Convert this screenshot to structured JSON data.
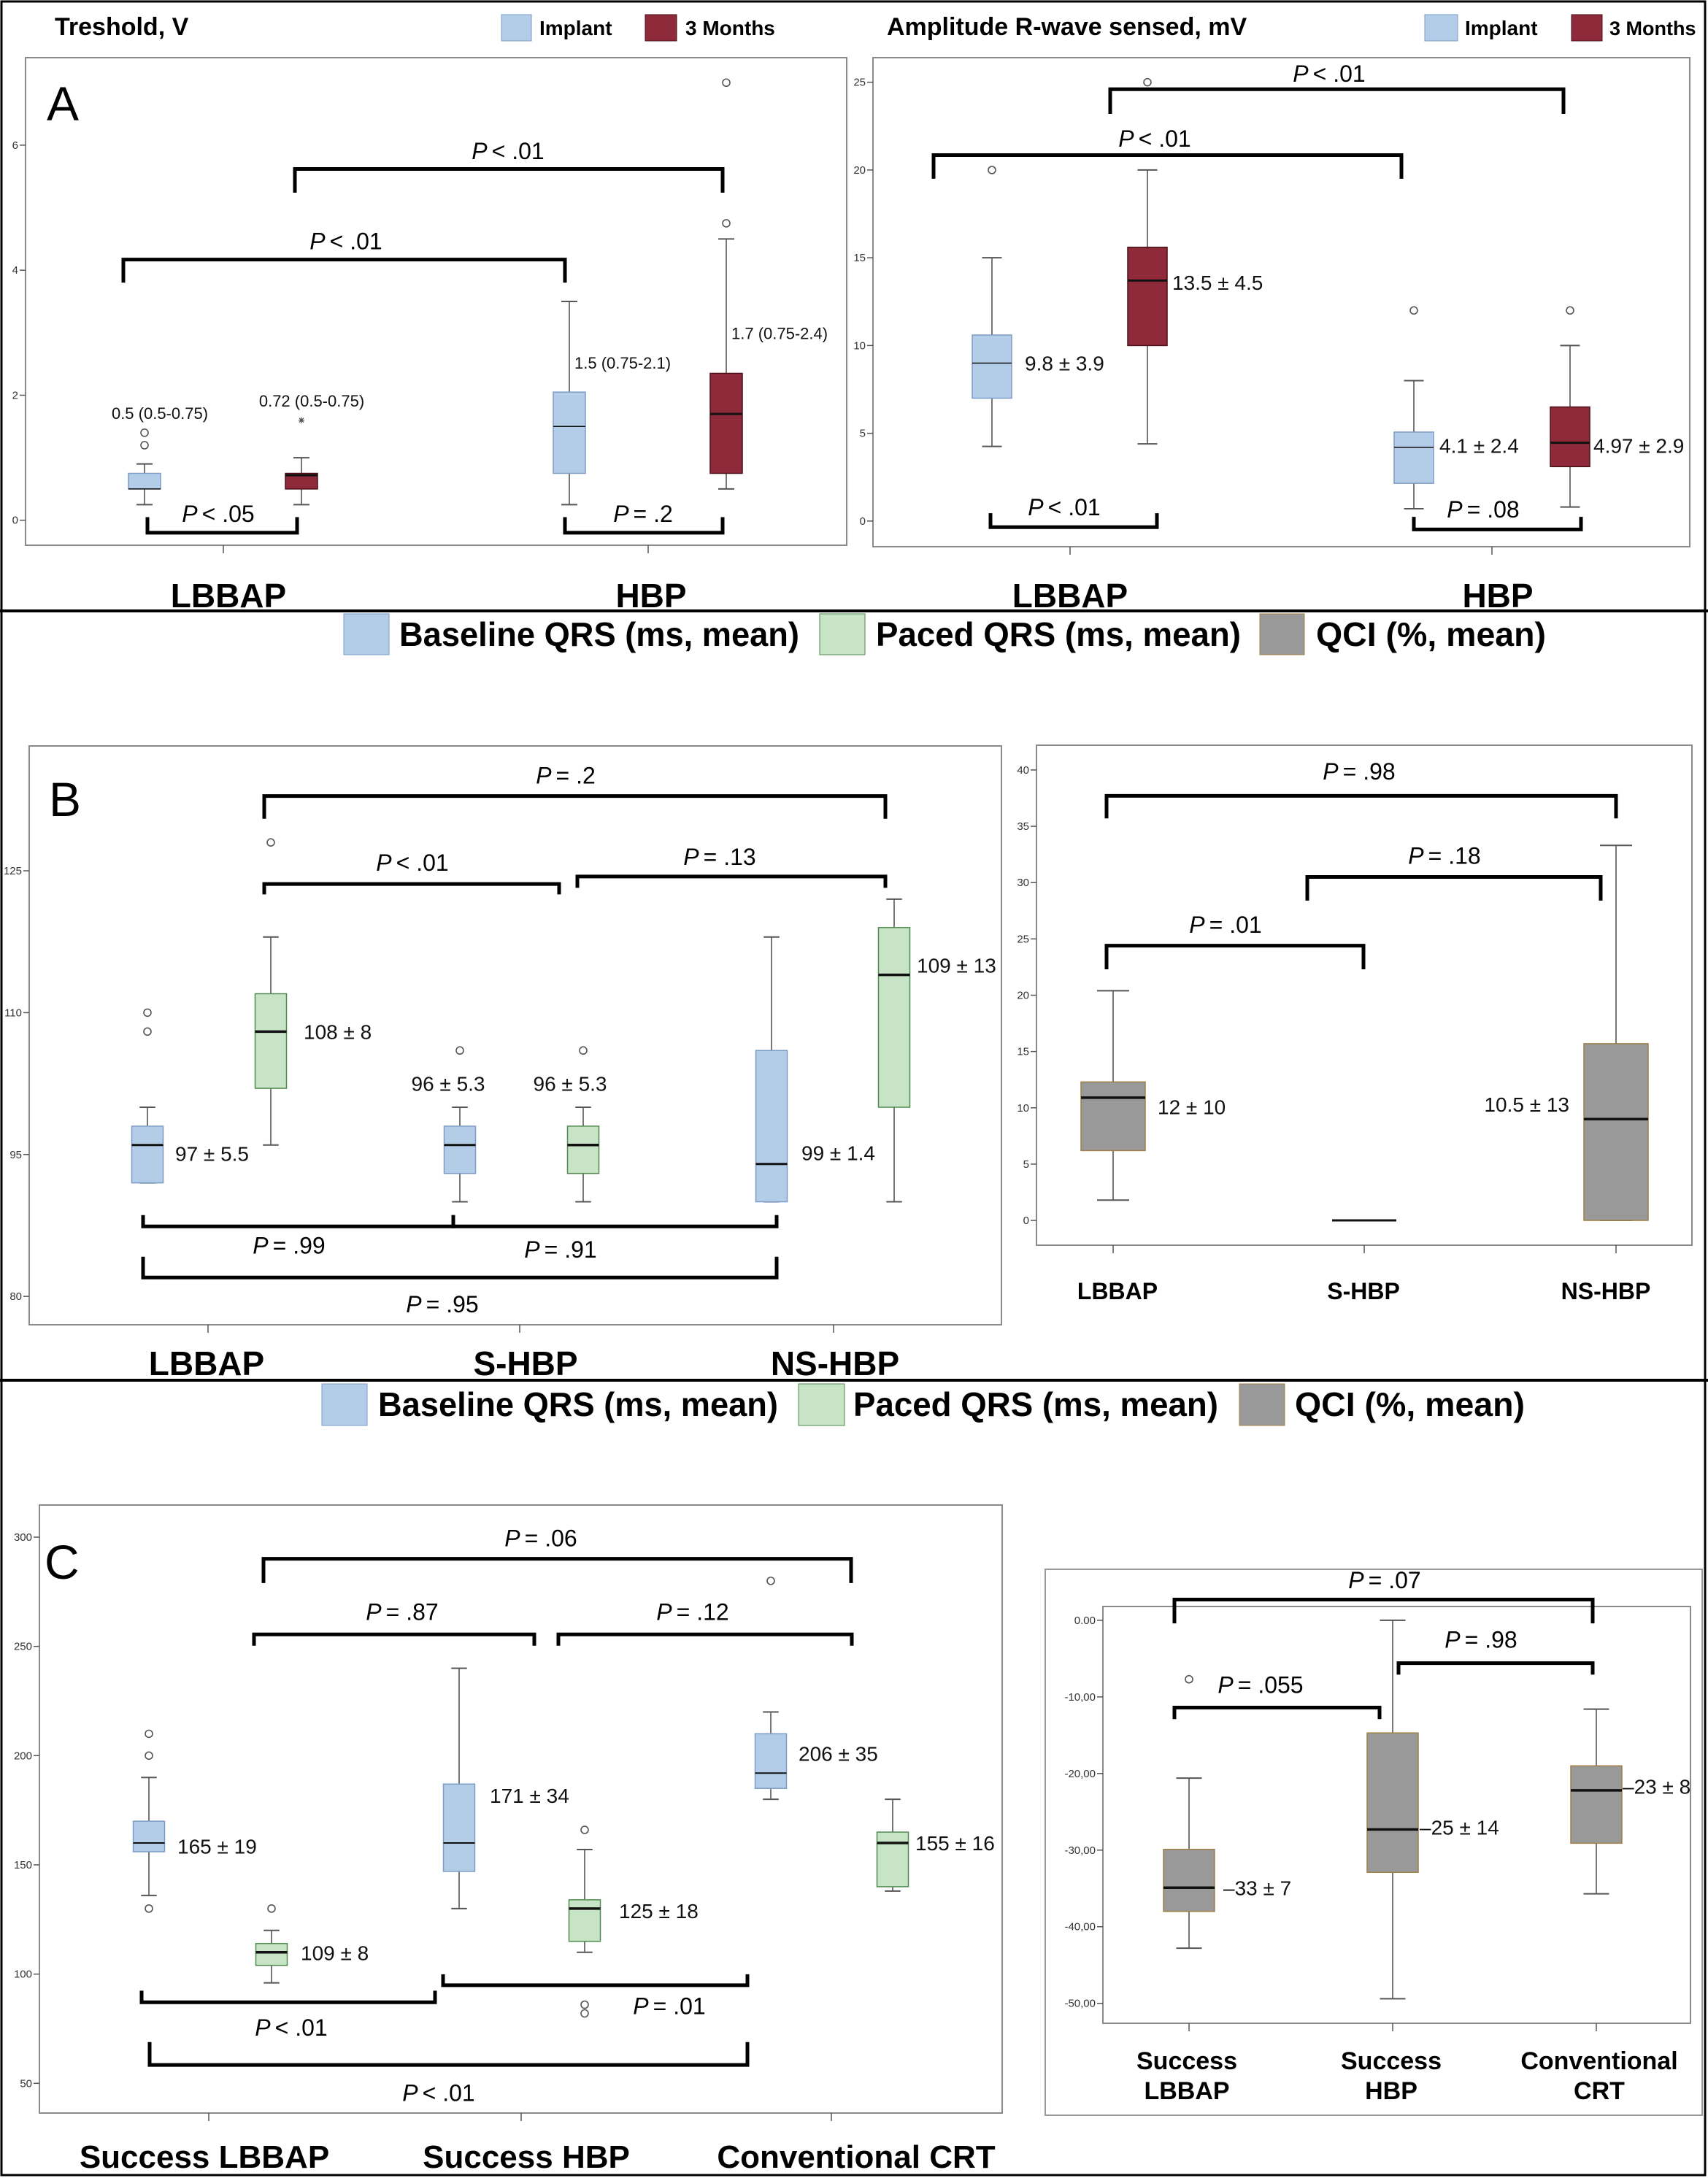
{
  "panels": [
    {
      "letter": "A"
    },
    {
      "letter": "B"
    },
    {
      "letter": "C"
    }
  ],
  "chart_data": [
    {
      "type": "box",
      "panel": "A",
      "title": "Treshold, V",
      "categories": [
        "LBBAP",
        "HBP"
      ],
      "series": [
        {
          "name": "Implant",
          "color": "#b3cde9",
          "edge": "#7d9cc4"
        },
        {
          "name": "3 Months",
          "color": "#8e2a3a",
          "edge": "#4a1019"
        }
      ],
      "ylim": [
        -0.4,
        7.4
      ],
      "yticks": [
        {
          "value": 0,
          "label": "0"
        },
        {
          "value": 2,
          "label": "2"
        },
        {
          "value": 4,
          "label": "4"
        },
        {
          "value": 6,
          "label": "6"
        }
      ],
      "stat_symbol": "P",
      "boxes": [
        {
          "category": 0,
          "series": 0,
          "whisker_low": 0.25,
          "q1": 0.5,
          "median": 0.5,
          "q3": 0.75,
          "whisker_high": 0.9,
          "outliers": [
            1.2,
            1.4
          ],
          "extremes": [],
          "annotation": "0.5 (0.5-0.75)"
        },
        {
          "category": 0,
          "series": 1,
          "whisker_low": 0.25,
          "q1": 0.5,
          "median": 0.72,
          "q3": 0.75,
          "whisker_high": 1.0,
          "outliers": [],
          "extremes": [
            1.6
          ],
          "annotation": "0.72 (0.5-0.75)"
        },
        {
          "category": 1,
          "series": 0,
          "whisker_low": 0.25,
          "q1": 0.75,
          "median": 1.5,
          "q3": 2.05,
          "whisker_high": 3.5,
          "outliers": [],
          "extremes": [],
          "annotation": "1.5 (0.75-2.1)"
        },
        {
          "category": 1,
          "series": 1,
          "whisker_low": 0.5,
          "q1": 0.75,
          "median": 1.7,
          "q3": 2.35,
          "whisker_high": 4.5,
          "outliers": [
            4.75,
            7.0
          ],
          "extremes": [],
          "annotation": "1.7 (0.75-2.4)"
        }
      ],
      "comparisons": [
        {
          "boxes": [
            0,
            1
          ],
          "p": "< .05"
        },
        {
          "boxes": [
            2,
            3
          ],
          "p": "= .2"
        },
        {
          "boxes": [
            0,
            2
          ],
          "p": "< .01"
        },
        {
          "boxes": [
            1,
            3
          ],
          "p": "< .01"
        }
      ]
    },
    {
      "type": "box",
      "panel": "A",
      "title": "Amplitude R-wave sensed, mV",
      "categories": [
        "LBBAP",
        "HBP"
      ],
      "series": [
        {
          "name": "Implant",
          "color": "#b3cde9",
          "edge": "#7d9cc4"
        },
        {
          "name": "3 Months",
          "color": "#8e2a3a",
          "edge": "#4a1019"
        }
      ],
      "ylim": [
        -1.46,
        26.4
      ],
      "yticks": [
        {
          "value": 0,
          "label": "0"
        },
        {
          "value": 5,
          "label": "5"
        },
        {
          "value": 10,
          "label": "10"
        },
        {
          "value": 15,
          "label": "15"
        },
        {
          "value": 20,
          "label": "20"
        },
        {
          "value": 25,
          "label": "25"
        }
      ],
      "stat_symbol": "P",
      "boxes": [
        {
          "category": 0,
          "series": 0,
          "whisker_low": 4.25,
          "q1": 7,
          "median": 9,
          "q3": 10.6,
          "whisker_high": 15,
          "outliers": [
            20
          ],
          "extremes": [],
          "annotation": "9.8 ± 3.9"
        },
        {
          "category": 0,
          "series": 1,
          "whisker_low": 4.4,
          "q1": 10,
          "median": 13.7,
          "q3": 15.6,
          "whisker_high": 20,
          "outliers": [
            25
          ],
          "extremes": [],
          "annotation": "13.5 ± 4.5"
        },
        {
          "category": 1,
          "series": 0,
          "whisker_low": 0.7,
          "q1": 2.15,
          "median": 4.2,
          "q3": 5.07,
          "whisker_high": 8,
          "outliers": [
            12
          ],
          "extremes": [],
          "annotation": "4.1 ± 2.4"
        },
        {
          "category": 1,
          "series": 1,
          "whisker_low": 0.8,
          "q1": 3.1,
          "median": 4.46,
          "q3": 6.5,
          "whisker_high": 10,
          "outliers": [
            12
          ],
          "extremes": [],
          "annotation": "4.97 ± 2.9"
        }
      ],
      "comparisons": [
        {
          "boxes": [
            0,
            1
          ],
          "p": "< .01"
        },
        {
          "boxes": [
            2,
            3
          ],
          "p": "= .08"
        },
        {
          "boxes": [
            0,
            2
          ],
          "p": "< .01"
        },
        {
          "boxes": [
            1,
            3
          ],
          "p": "< .01"
        }
      ]
    },
    {
      "type": "box",
      "panel": "B",
      "categories": [
        "LBBAP",
        "S-HBP",
        "NS-HBP"
      ],
      "series": [
        {
          "name": "Baseline QRS (ms, mean)",
          "color": "#b3cde9",
          "edge": "#7d9cc4"
        },
        {
          "name": "Paced QRS (ms, mean)",
          "color": "#c8e4c6",
          "edge": "#4f8a4f"
        }
      ],
      "ylim": [
        77,
        138.2
      ],
      "yticks": [
        {
          "value": 80,
          "label": "80"
        },
        {
          "value": 95,
          "label": "95"
        },
        {
          "value": 110,
          "label": "110"
        },
        {
          "value": 125,
          "label": "125"
        }
      ],
      "stat_symbol": "P",
      "boxes": [
        {
          "category": 0,
          "series": 0,
          "whisker_low": 92,
          "q1": 92,
          "median": 96,
          "q3": 98,
          "whisker_high": 100,
          "outliers": [
            108,
            110
          ],
          "extremes": [],
          "annotation": "97 ± 5.5"
        },
        {
          "category": 0,
          "series": 1,
          "whisker_low": 96,
          "q1": 102,
          "median": 108,
          "q3": 112,
          "whisker_high": 118,
          "outliers": [
            128
          ],
          "extremes": [],
          "annotation": "108 ± 8"
        },
        {
          "category": 1,
          "series": 0,
          "whisker_low": 90,
          "q1": 93,
          "median": 96,
          "q3": 98,
          "whisker_high": 100,
          "outliers": [
            106
          ],
          "extremes": [],
          "annotation": "96 ± 5.3"
        },
        {
          "category": 1,
          "series": 1,
          "whisker_low": 90,
          "q1": 93,
          "median": 96,
          "q3": 98,
          "whisker_high": 100,
          "outliers": [
            106
          ],
          "extremes": [],
          "annotation": "96 ± 5.3"
        },
        {
          "category": 2,
          "series": 0,
          "whisker_low": 90,
          "q1": 90,
          "median": 94,
          "q3": 106,
          "whisker_high": 118,
          "outliers": [],
          "extremes": [],
          "annotation": "99 ± 1.4"
        },
        {
          "category": 2,
          "series": 1,
          "whisker_low": 90,
          "q1": 100,
          "median": 114,
          "q3": 119,
          "whisker_high": 122,
          "outliers": [],
          "extremes": [],
          "annotation": "109 ± 13"
        }
      ],
      "comparisons": [
        {
          "boxes": [
            1,
            5
          ],
          "p": "= .2"
        },
        {
          "boxes": [
            1,
            3
          ],
          "p": "< .01"
        },
        {
          "boxes": [
            3,
            5
          ],
          "p": "= .13"
        },
        {
          "boxes": [
            0,
            2
          ],
          "p": "= .99"
        },
        {
          "boxes": [
            2,
            4
          ],
          "p": "= .91"
        },
        {
          "boxes": [
            0,
            4
          ],
          "p": "= .95"
        }
      ]
    },
    {
      "type": "box",
      "panel": "B",
      "categories": [
        "LBBAP",
        "S-HBP",
        "NS-HBP"
      ],
      "series": [
        {
          "name": "QCI (%, mean)",
          "color": "#999999",
          "edge": "#a08048"
        }
      ],
      "ylim": [
        -2.2,
        42.2
      ],
      "yticks": [
        {
          "value": 0,
          "label": "0"
        },
        {
          "value": 5,
          "label": "5"
        },
        {
          "value": 10,
          "label": "10"
        },
        {
          "value": 15,
          "label": "15"
        },
        {
          "value": 20,
          "label": "20"
        },
        {
          "value": 25,
          "label": "25"
        },
        {
          "value": 30,
          "label": "30"
        },
        {
          "value": 35,
          "label": "35"
        },
        {
          "value": 40,
          "label": "40"
        }
      ],
      "stat_symbol": "P",
      "boxes": [
        {
          "category": 0,
          "series": 0,
          "whisker_low": 1.8,
          "q1": 6.2,
          "median": 10.9,
          "q3": 12.3,
          "whisker_high": 20.4,
          "outliers": [],
          "extremes": [],
          "annotation": "12 ± 10"
        },
        {
          "category": 1,
          "series": 0,
          "whisker_low": 0,
          "q1": 0,
          "median": 0,
          "q3": 0,
          "whisker_high": 0,
          "outliers": [],
          "extremes": []
        },
        {
          "category": 2,
          "series": 0,
          "whisker_low": 0,
          "q1": 0,
          "median": 9,
          "q3": 15.7,
          "whisker_high": 33.3,
          "outliers": [],
          "extremes": [],
          "annotation": "10.5 ± 13"
        }
      ],
      "comparisons": [
        {
          "boxes": [
            0,
            2
          ],
          "p": "= .98"
        },
        {
          "boxes": [
            1,
            2
          ],
          "p": "= .18"
        },
        {
          "boxes": [
            0,
            1
          ],
          "p": "= .01"
        }
      ]
    },
    {
      "type": "box",
      "panel": "C",
      "categories": [
        "Success LBBAP",
        "Success HBP",
        "Conventional CRT"
      ],
      "series": [
        {
          "name": "Baseline QRS (ms, mean)",
          "color": "#b3cde9",
          "edge": "#7d9cc4"
        },
        {
          "name": "Paced QRS (ms, mean)",
          "color": "#c8e4c6",
          "edge": "#4f8a4f"
        }
      ],
      "ylim": [
        36.4,
        314.7
      ],
      "yticks": [
        {
          "value": 50,
          "label": "50"
        },
        {
          "value": 100,
          "label": "100"
        },
        {
          "value": 150,
          "label": "150"
        },
        {
          "value": 200,
          "label": "200"
        },
        {
          "value": 250,
          "label": "250"
        },
        {
          "value": 300,
          "label": "300"
        }
      ],
      "stat_symbol": "P",
      "boxes": [
        {
          "category": 0,
          "series": 0,
          "whisker_low": 136,
          "q1": 156,
          "median": 160,
          "q3": 170,
          "whisker_high": 190,
          "outliers": [
            130,
            200,
            210
          ],
          "extremes": [],
          "annotation": "165 ± 19"
        },
        {
          "category": 0,
          "series": 1,
          "whisker_low": 96,
          "q1": 104,
          "median": 110,
          "q3": 114,
          "whisker_high": 120,
          "outliers": [
            130
          ],
          "extremes": [],
          "annotation": "109 ± 8"
        },
        {
          "category": 1,
          "series": 0,
          "whisker_low": 130,
          "q1": 147,
          "median": 160,
          "q3": 187,
          "whisker_high": 240,
          "outliers": [],
          "extremes": [],
          "annotation": "171 ± 34"
        },
        {
          "category": 1,
          "series": 1,
          "whisker_low": 110,
          "q1": 115,
          "median": 130,
          "q3": 134,
          "whisker_high": 157,
          "outliers": [
            166,
            86,
            82
          ],
          "extremes": [],
          "annotation": "125 ± 18"
        },
        {
          "category": 2,
          "series": 0,
          "whisker_low": 180,
          "q1": 185,
          "median": 192,
          "q3": 210,
          "whisker_high": 220,
          "outliers": [
            280
          ],
          "extremes": [],
          "annotation": "206 ± 35"
        },
        {
          "category": 2,
          "series": 1,
          "whisker_low": 138,
          "q1": 140,
          "median": 160,
          "q3": 165,
          "whisker_high": 180,
          "outliers": [],
          "extremes": [],
          "annotation": "155 ± 16"
        }
      ],
      "comparisons": [
        {
          "boxes": [
            1,
            5
          ],
          "p": "= .06"
        },
        {
          "boxes": [
            1,
            3
          ],
          "p": "= .87"
        },
        {
          "boxes": [
            3,
            5
          ],
          "p": "= .12"
        },
        {
          "boxes": [
            0,
            2
          ],
          "p": "< .01"
        },
        {
          "boxes": [
            2,
            4
          ],
          "p": "= .01"
        },
        {
          "boxes": [
            0,
            4
          ],
          "p": "< .01"
        }
      ]
    },
    {
      "type": "box",
      "panel": "C",
      "categories": [
        [
          "Success",
          "LBBAP"
        ],
        [
          "Success",
          "HBP"
        ],
        [
          "Conventional",
          "CRT"
        ]
      ],
      "series": [
        {
          "name": "QCI (%, mean)",
          "color": "#999999",
          "edge": "#a08048"
        }
      ],
      "ylim": [
        -52.6,
        1.8
      ],
      "yticks": [
        {
          "value": 0,
          "label": "0.00"
        },
        {
          "value": -10,
          "label": "-10,00"
        },
        {
          "value": -20,
          "label": "-20,00"
        },
        {
          "value": -30,
          "label": "-30,00"
        },
        {
          "value": -40,
          "label": "-40,00"
        },
        {
          "value": -50,
          "label": "-50,00"
        }
      ],
      "stat_symbol": "P",
      "boxes": [
        {
          "category": 0,
          "series": 0,
          "whisker_low": -42.8,
          "q1": -38,
          "median": -34.9,
          "q3": -29.9,
          "whisker_high": -20.6,
          "outliers": [
            -7.7
          ],
          "extremes": [],
          "annotation": "–33 ± 7"
        },
        {
          "category": 1,
          "series": 0,
          "whisker_low": -49.4,
          "q1": -32.9,
          "median": -27.3,
          "q3": -14.7,
          "whisker_high": 0,
          "outliers": [],
          "extremes": [],
          "annotation": "–25 ± 14"
        },
        {
          "category": 2,
          "series": 0,
          "whisker_low": -35.7,
          "q1": -29.1,
          "median": -22.2,
          "q3": -19,
          "whisker_high": -11.6,
          "outliers": [],
          "extremes": [],
          "annotation": "–23 ± 8"
        }
      ],
      "comparisons": [
        {
          "boxes": [
            0,
            2
          ],
          "p": "= .07"
        },
        {
          "boxes": [
            1,
            2
          ],
          "p": "= .98"
        },
        {
          "boxes": [
            0,
            1
          ],
          "p": "= .055"
        }
      ]
    }
  ]
}
